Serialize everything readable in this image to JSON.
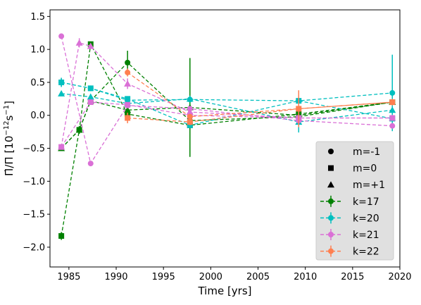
{
  "chart_data": {
    "type": "line",
    "xlabel": "Time [yrs]",
    "ylabel_main": "Π̇/Π [10",
    "ylabel_exp": "−12",
    "ylabel_s": "s",
    "ylabel_sexp": "−1",
    "ylabel_end": "]",
    "xlim": [
      1983,
      2020
    ],
    "ylim": [
      -2.3,
      1.6
    ],
    "xticks": [
      1985,
      1990,
      1995,
      2000,
      2005,
      2010,
      2015,
      2020
    ],
    "xtick_labels": [
      "1985",
      "1990",
      "1995",
      "2000",
      "2005",
      "2010",
      "2015",
      "2020"
    ],
    "yticks": [
      -2.0,
      -1.5,
      -1.0,
      -0.5,
      0.0,
      0.5,
      1.0,
      1.5
    ],
    "ytick_labels": [
      "−2.0",
      "−1.5",
      "−1.0",
      "−0.5",
      "0.0",
      "0.5",
      "1.0",
      "1.5"
    ],
    "grid": false,
    "legend_position": "bottom-right",
    "legend": {
      "markers": [
        {
          "label": "m=-1",
          "marker": "circle"
        },
        {
          "label": "m=0",
          "marker": "square"
        },
        {
          "label": "m=+1",
          "marker": "triangle"
        }
      ],
      "series": [
        {
          "label": "k=17",
          "color": "#008000"
        },
        {
          "label": "k=20",
          "color": "#00bfbf"
        },
        {
          "label": "k=21",
          "color": "#da70d6"
        },
        {
          "label": "k=22",
          "color": "#ff7f50"
        }
      ]
    },
    "series": [
      {
        "k": "k=17",
        "m": "m=-1",
        "color": "#008000",
        "marker": "circle",
        "points": [
          {
            "x": 1984.2,
            "y": -0.5,
            "err": 0.03
          },
          {
            "x": 1986.1,
            "y": -0.22,
            "err": 0.05
          },
          {
            "x": 1987.3,
            "y": 0.22,
            "err": 0.03
          },
          {
            "x": 1991.2,
            "y": 0.8,
            "err": 0.18
          },
          {
            "x": 1997.8,
            "y": -0.08,
            "err": 0.03
          },
          {
            "x": 2009.3,
            "y": -0.02,
            "err": 0.03
          },
          {
            "x": 2019.2,
            "y": 0.2,
            "err": 0.03
          }
        ]
      },
      {
        "k": "k=17",
        "m": "m=0",
        "color": "#008000",
        "marker": "square",
        "points": [
          {
            "x": 1984.2,
            "y": -1.83,
            "err": 0.06
          },
          {
            "x": 1986.1,
            "y": -0.22,
            "err": 0.06
          },
          {
            "x": 1987.3,
            "y": 1.08,
            "err": 0.04
          },
          {
            "x": 1991.2,
            "y": 0.02,
            "err": 0.03
          },
          {
            "x": 1997.8,
            "y": -0.15,
            "err": 0.03
          },
          {
            "x": 2009.3,
            "y": 0.02,
            "err": 0.03
          },
          {
            "x": 2019.2,
            "y": 0.2,
            "err": 0.04
          }
        ]
      },
      {
        "k": "k=17",
        "m": "m=+1",
        "color": "#008000",
        "marker": "triangle",
        "points": [
          {
            "x": 1984.2,
            "y": -0.5,
            "err": 0.03
          },
          {
            "x": 1986.1,
            "y": -0.22,
            "err": 0.04
          },
          {
            "x": 1987.3,
            "y": 0.22,
            "err": 0.03
          },
          {
            "x": 1991.2,
            "y": 0.08,
            "err": 0.03
          },
          {
            "x": 1997.8,
            "y": 0.12,
            "err": 0.75
          },
          {
            "x": 2009.3,
            "y": 0.0,
            "err": 0.04
          },
          {
            "x": 2019.2,
            "y": 0.2,
            "err": 0.04
          }
        ]
      },
      {
        "k": "k=20",
        "m": "m=-1",
        "color": "#00bfbf",
        "marker": "circle",
        "points": [
          {
            "x": 1984.2,
            "y": 0.5,
            "err": 0.07
          },
          {
            "x": 1987.3,
            "y": 0.41,
            "err": 0.03
          },
          {
            "x": 1991.2,
            "y": 0.23,
            "err": 0.03
          },
          {
            "x": 1997.8,
            "y": 0.24,
            "err": 0.04
          },
          {
            "x": 2009.3,
            "y": 0.22,
            "err": 0.08
          },
          {
            "x": 2019.2,
            "y": 0.34,
            "err": 0.58
          }
        ]
      },
      {
        "k": "k=20",
        "m": "m=0",
        "color": "#00bfbf",
        "marker": "square",
        "points": [
          {
            "x": 1984.2,
            "y": 0.5,
            "err": 0.06
          },
          {
            "x": 1987.3,
            "y": 0.41,
            "err": 0.03
          },
          {
            "x": 1991.2,
            "y": 0.25,
            "err": 0.04
          },
          {
            "x": 1997.8,
            "y": -0.15,
            "err": 0.04
          },
          {
            "x": 2009.3,
            "y": 0.22,
            "err": 0.05
          },
          {
            "x": 2019.2,
            "y": -0.05,
            "err": 0.06
          }
        ]
      },
      {
        "k": "k=20",
        "m": "m=+1",
        "color": "#00bfbf",
        "marker": "triangle",
        "points": [
          {
            "x": 1984.2,
            "y": 0.33,
            "err": 0.03
          },
          {
            "x": 1987.3,
            "y": 0.28,
            "err": 0.03
          },
          {
            "x": 1991.2,
            "y": 0.18,
            "err": 0.03
          },
          {
            "x": 1997.8,
            "y": 0.25,
            "err": 0.04
          },
          {
            "x": 2009.3,
            "y": -0.1,
            "err": 0.16
          },
          {
            "x": 2019.2,
            "y": 0.08,
            "err": 0.06
          }
        ]
      },
      {
        "k": "k=21",
        "m": "m=-1",
        "color": "#da70d6",
        "marker": "circle",
        "points": [
          {
            "x": 1984.2,
            "y": 1.2,
            "err": 0.02
          },
          {
            "x": 1987.3,
            "y": -0.73,
            "err": 0.02
          },
          {
            "x": 1991.2,
            "y": 0.15,
            "err": 0.03
          },
          {
            "x": 1997.8,
            "y": 0.1,
            "err": 0.03
          },
          {
            "x": 2009.3,
            "y": -0.08,
            "err": 0.03
          },
          {
            "x": 2019.2,
            "y": -0.16,
            "err": 0.04
          }
        ]
      },
      {
        "k": "k=21",
        "m": "m=0",
        "color": "#da70d6",
        "marker": "square",
        "points": [
          {
            "x": 1984.2,
            "y": -0.48,
            "err": 0.03
          },
          {
            "x": 1987.3,
            "y": 0.2,
            "err": 0.03
          },
          {
            "x": 1991.2,
            "y": 0.16,
            "err": 0.03
          },
          {
            "x": 1997.8,
            "y": 0.0,
            "err": 0.03
          },
          {
            "x": 2009.3,
            "y": -0.04,
            "err": 0.03
          },
          {
            "x": 2019.2,
            "y": -0.04,
            "err": 0.03
          }
        ]
      },
      {
        "k": "k=21",
        "m": "m=+1",
        "color": "#da70d6",
        "marker": "triangle",
        "points": [
          {
            "x": 1984.2,
            "y": -0.48,
            "err": 0.03
          },
          {
            "x": 1986.1,
            "y": 1.1,
            "err": 0.07
          },
          {
            "x": 1987.3,
            "y": 1.05,
            "err": 0.03
          },
          {
            "x": 1991.2,
            "y": 0.48,
            "err": 0.08
          },
          {
            "x": 1997.8,
            "y": 0.05,
            "err": 0.03
          },
          {
            "x": 2009.3,
            "y": -0.04,
            "err": 0.03
          },
          {
            "x": 2019.2,
            "y": -0.04,
            "err": 0.03
          }
        ]
      },
      {
        "k": "k=22",
        "m": "m=-1",
        "color": "#ff7f50",
        "marker": "circle",
        "points": [
          {
            "x": 1991.2,
            "y": 0.65,
            "err": 0.06
          },
          {
            "x": 1997.8,
            "y": -0.02,
            "err": 0.04
          },
          {
            "x": 2009.3,
            "y": 0.1,
            "err": 0.04
          },
          {
            "x": 2019.2,
            "y": 0.2,
            "err": 0.04
          }
        ]
      },
      {
        "k": "k=22",
        "m": "m=0",
        "color": "#ff7f50",
        "marker": "square",
        "points": [
          {
            "x": 1991.2,
            "y": -0.04,
            "err": 0.08
          },
          {
            "x": 1997.8,
            "y": -0.1,
            "err": 0.05
          },
          {
            "x": 2009.3,
            "y": 0.1,
            "err": 0.28
          },
          {
            "x": 2019.2,
            "y": 0.2,
            "err": 0.05
          }
        ]
      }
    ]
  }
}
